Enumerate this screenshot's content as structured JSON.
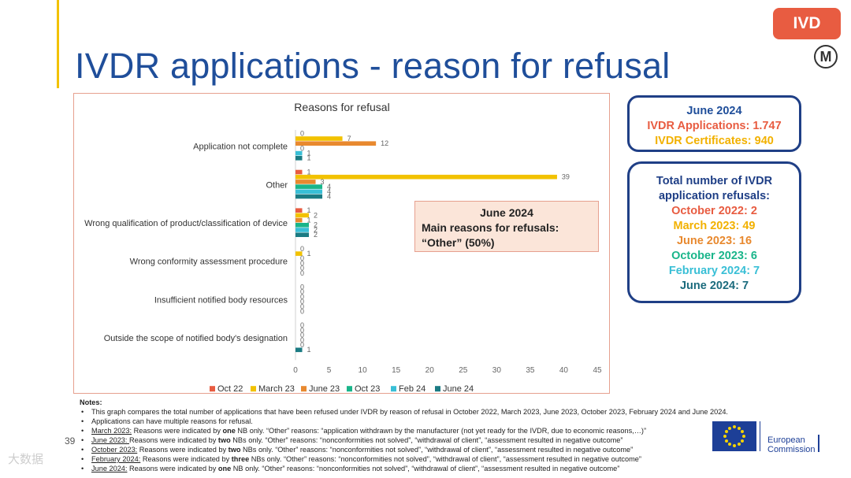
{
  "slide": {
    "title": "IVDR applications - reason for refusal",
    "badge": "IVD",
    "logo_letter": "M",
    "page_number": "39",
    "watermark": "大数据"
  },
  "colors": {
    "title": "#1f4e9a",
    "badge": "#e85c41",
    "box_border": "#1f3f86",
    "oct22": "#e85c41",
    "mar23": "#f2c200",
    "jun23": "#e8892f",
    "oct23": "#19b58a",
    "feb24": "#39bfd6",
    "jun24": "#1b7b83"
  },
  "chart_data": {
    "type": "bar",
    "orientation": "horizontal",
    "title": "Reasons for refusal",
    "categories": [
      "Application not complete",
      "Other",
      "Wrong qualification of product/classification of device",
      "Wrong conformity assessment procedure",
      "Insufficient notified body resources",
      "Outside the scope of notified body's designation"
    ],
    "series": [
      {
        "name": "Oct 22",
        "color": "#e85c41",
        "values": [
          0,
          1,
          1,
          0,
          0,
          0
        ]
      },
      {
        "name": "March 23",
        "color": "#f2c200",
        "values": [
          7,
          39,
          2,
          1,
          0,
          0
        ]
      },
      {
        "name": "June 23",
        "color": "#e8892f",
        "values": [
          12,
          3,
          1,
          0,
          0,
          0
        ]
      },
      {
        "name": "Oct 23",
        "color": "#19b58a",
        "values": [
          0,
          4,
          2,
          0,
          0,
          0
        ]
      },
      {
        "name": "Feb 24",
        "color": "#39bfd6",
        "values": [
          1,
          4,
          2,
          0,
          0,
          0
        ]
      },
      {
        "name": "June 24",
        "color": "#1b7b83",
        "values": [
          1,
          4,
          2,
          0,
          0,
          1
        ]
      }
    ],
    "label_display": [
      [
        "0",
        "7",
        "12",
        "0",
        "1",
        "1"
      ],
      [
        "1",
        "39",
        "3",
        "4",
        "4",
        "4"
      ],
      [
        "1",
        "2",
        "1",
        "2",
        "2",
        "2"
      ],
      [
        "0",
        "1",
        "0",
        "0",
        "0",
        "0"
      ],
      [
        "0",
        "0",
        "0",
        "0",
        "0",
        "0"
      ],
      [
        "0",
        "0",
        "0",
        "0",
        "0",
        "1"
      ]
    ],
    "xlim": [
      0,
      45
    ],
    "xticks": [
      "0",
      "5",
      "10",
      "15",
      "20",
      "25",
      "30",
      "35",
      "40",
      "45"
    ],
    "legend_position": "bottom"
  },
  "callout": {
    "title": "June 2024",
    "line1": "Main reasons for refusals:",
    "line2": "“Other” (50%)"
  },
  "summary": {
    "title": "June 2024",
    "applications": "IVDR Applications: 1.747",
    "certificates": "IVDR Certificates: 940"
  },
  "refusals": {
    "title": "Total number of IVDR application refusals:",
    "items": [
      {
        "text": "October 2022: 2",
        "color": "#e85c41"
      },
      {
        "text": "March 2023: 49",
        "color": "#f2b100"
      },
      {
        "text": "June 2023: 16",
        "color": "#e8892f"
      },
      {
        "text": "October 2023: 6",
        "color": "#19b58a"
      },
      {
        "text": "February 2024: 7",
        "color": "#39bfd6"
      },
      {
        "text": "June 2024: 7",
        "color": "#1b6b7d"
      }
    ]
  },
  "notes": {
    "heading": "Notes:",
    "line1": "This graph compares the total number of applications that have been refused under IVDR by reason of refusal in October 2022, March 2023, June 2023, October 2023, February 2024 and June 2024.",
    "line2": "Applications can have multiple reasons for refusal.",
    "line3_label": "March 2023:",
    "line3_a": " Reasons were indicated by ",
    "line3_b": "one",
    "line3_c": " NB only. “Other” reasons: “application withdrawn by the manufacturer (not yet ready for the IVDR, due to economic reasons,…)”",
    "line4_label": "June 2023: ",
    "line4_a": " Reasons were indicated by ",
    "line4_b": "two",
    "line4_c": " NBs only. “Other” reasons: “nonconformities not solved”, “withdrawal of client”, “assessment resulted in negative outcome”",
    "line5_label": "October 2023:",
    "line5_a": " Reasons were indicated by ",
    "line5_b": "two",
    "line5_c": " NBs only. “Other” reasons: “nonconformities not solved”, “withdrawal of client”, “assessment resulted in negative outcome”",
    "line6_label": "February 2024:",
    "line6_a": " Reasons were indicated by ",
    "line6_b": "three",
    "line6_c": " NBs only. “Other” reasons: “nonconformities not solved”, “withdrawal of client”, “assessment resulted in negative outcome”",
    "line7_label": "June 2024:",
    "line7_a": " Reasons were indicated by ",
    "line7_b": "one",
    "line7_c": " NB only. “Other” reasons: “nonconformities not solved”, “withdrawal of client”, “assessment resulted in negative outcome”"
  },
  "footer": {
    "eu_line1": "European",
    "eu_line2": "Commission"
  }
}
